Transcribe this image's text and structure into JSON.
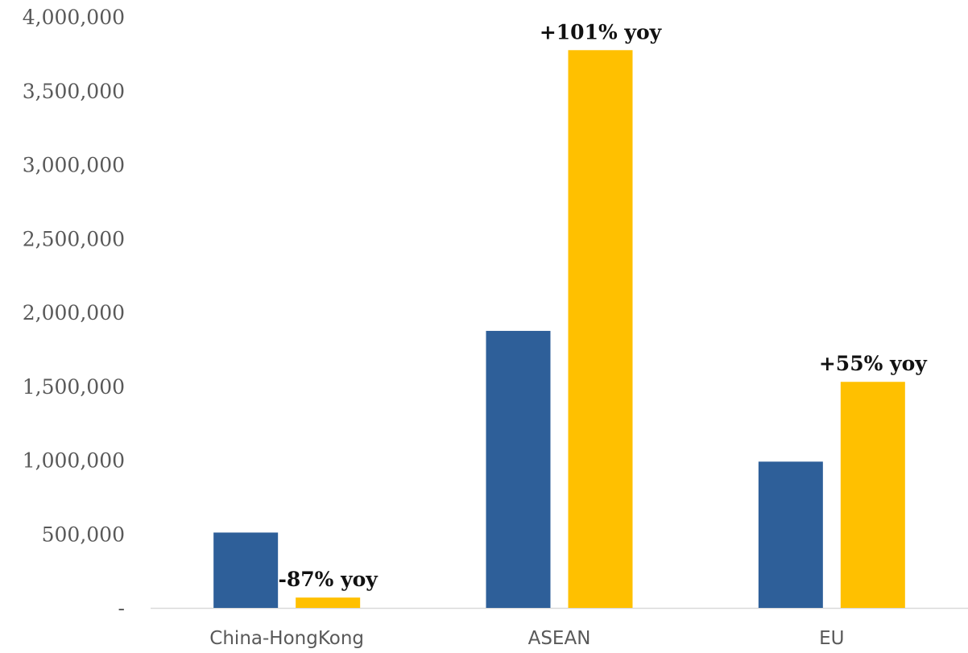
{
  "chart_data": {
    "type": "bar",
    "categories": [
      "China-HongKong",
      "ASEAN",
      "EU"
    ],
    "series": [
      {
        "values": [
          510000,
          1875000,
          990000
        ],
        "color": "#2E5F99"
      },
      {
        "values": [
          70000,
          3775000,
          1530000
        ],
        "color": "#FFC000"
      }
    ],
    "annotations": [
      {
        "category": "China-HongKong",
        "series": 1,
        "text": "-87% yoy"
      },
      {
        "category": "ASEAN",
        "series": 1,
        "text": "+101% yoy"
      },
      {
        "category": "EU",
        "series": 1,
        "text": "+55% yoy"
      }
    ],
    "y_ticks": [
      0,
      500000,
      1000000,
      1500000,
      2000000,
      2500000,
      3000000,
      3500000,
      4000000
    ],
    "y_tick_labels": [
      "-",
      "500,000",
      "1,000,000",
      "1,500,000",
      "2,000,000",
      "2,500,000",
      "3,000,000",
      "3,500,000",
      "4,000,000"
    ],
    "ylim": [
      0,
      4000000
    ],
    "grid": false,
    "legend": "none",
    "axis_color": "#D9D9D9"
  }
}
